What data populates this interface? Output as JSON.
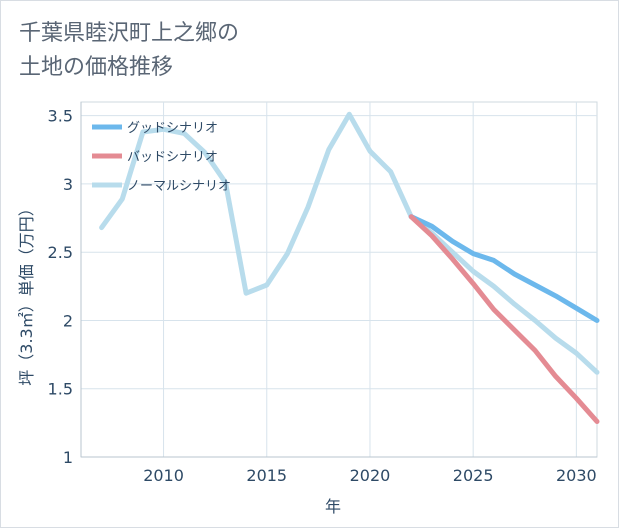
{
  "page": {
    "title": "千葉県睦沢町上之郷の\n土地の価格推移"
  },
  "chart_data": {
    "type": "line",
    "title": "千葉県睦沢町上之郷の\n土地の価格推移",
    "xlabel": "年",
    "ylabel": "坪（3.3㎡）単価（万円）",
    "xlim": [
      2006,
      2031
    ],
    "ylim": [
      1,
      3.6
    ],
    "xticks": [
      2010,
      2015,
      2020,
      2025,
      2030
    ],
    "yticks": [
      1,
      1.5,
      2,
      2.5,
      3,
      3.5
    ],
    "ytick_labels": [
      "1",
      "1.5",
      "2",
      "2.5",
      "3",
      "3.5"
    ],
    "grid": true,
    "legend_position": "top-left",
    "series": [
      {
        "name": "グッドシナリオ",
        "color": "#6cb8ec",
        "x": [
          2022,
          2023,
          2024,
          2025,
          2026,
          2027,
          2028,
          2029,
          2030,
          2031
        ],
        "y": [
          2.76,
          2.69,
          2.58,
          2.49,
          2.44,
          2.34,
          2.26,
          2.18,
          2.09,
          2.0
        ]
      },
      {
        "name": "バッドシナリオ",
        "color": "#e48b93",
        "x": [
          2022,
          2023,
          2024,
          2025,
          2026,
          2027,
          2028,
          2029,
          2030,
          2031
        ],
        "y": [
          2.76,
          2.62,
          2.45,
          2.27,
          2.08,
          1.93,
          1.78,
          1.59,
          1.43,
          1.26
        ]
      },
      {
        "name": "ノーマルシナリオ",
        "color": "#b8dcec",
        "x": [
          2007,
          2008,
          2009,
          2010,
          2011,
          2012,
          2013,
          2014,
          2015,
          2016,
          2017,
          2018,
          2019,
          2020,
          2021,
          2022,
          2023,
          2024,
          2025,
          2026,
          2027,
          2028,
          2029,
          2030,
          2031
        ],
        "y": [
          2.68,
          2.89,
          3.38,
          3.4,
          3.37,
          3.23,
          3.01,
          2.2,
          2.26,
          2.49,
          2.83,
          3.25,
          3.51,
          3.24,
          3.09,
          2.76,
          2.64,
          2.5,
          2.36,
          2.25,
          2.12,
          2.0,
          1.87,
          1.76,
          1.62
        ]
      }
    ]
  }
}
